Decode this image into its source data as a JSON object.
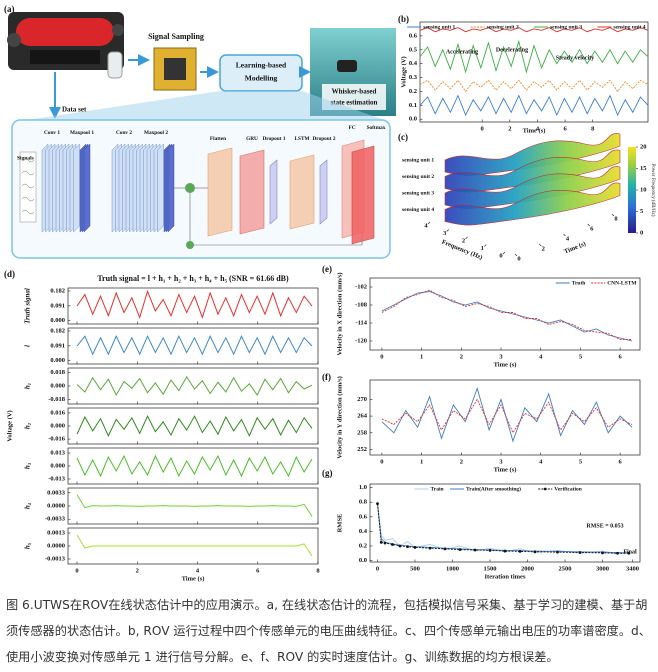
{
  "diagram": {
    "label": "(a)",
    "sampling": "Signal Sampling",
    "modelling": [
      "Learning-based",
      "Modelling"
    ],
    "estimation": [
      "Whisker-based",
      "state estimation"
    ],
    "dataset": "Data set",
    "signals": "Signals",
    "layers": [
      "Conv 1",
      "Maxpool 1",
      "Conv 2",
      "Maxpool 2",
      "Flatten",
      "GRU",
      "Dropout 1",
      "LSTM",
      "Dropout 2",
      "FC",
      "Softmax"
    ]
  },
  "chart_data": [
    {
      "type": "line",
      "label": "(b)",
      "xlabel": "Time (s)",
      "ylabel": "Voltage (V)",
      "legend": "top",
      "x": [
        -4.5,
        -3.95,
        -3.4,
        -2.85,
        -2.3,
        -1.75,
        -1.2,
        -0.65,
        -0.1,
        0.45,
        1,
        1.55,
        2.1,
        2.65,
        3.2,
        3.75,
        4.3,
        4.85,
        5.4,
        5.95,
        6.5,
        7.05,
        7.6,
        8.15,
        8.7,
        9.25,
        9.8,
        10.35,
        10.9,
        11.45,
        12
      ],
      "xlim": [
        -4.5,
        12
      ],
      "xticks": [
        0,
        2,
        4,
        6,
        8
      ],
      "ylim": [
        -0.02,
        0.7
      ],
      "yticks": [
        {
          "value": 0,
          "label": "0.0"
        },
        0.1,
        0.2,
        0.3,
        0.4,
        0.5,
        0.6
      ],
      "annotations": [
        "Accelerating",
        "Decelerating",
        "Steady velocity"
      ],
      "series": [
        {
          "name": "sensing unit 1",
          "color": "#3b7dd8",
          "values": [
            0.1,
            0.16,
            0.04,
            0.15,
            0.05,
            0.17,
            0.03,
            0.14,
            0.06,
            0.16,
            0.04,
            0.15,
            0.05,
            0.17,
            0.04,
            0.14,
            0.06,
            0.16,
            0.03,
            0.15,
            0.05,
            0.16,
            0.04,
            0.15,
            0.06,
            0.17,
            0.03,
            0.14,
            0.05,
            0.16,
            0.1
          ]
        },
        {
          "name": "sensing unit 2",
          "color": "#f08a2c",
          "dash": true,
          "values": [
            0.25,
            0.28,
            0.21,
            0.27,
            0.22,
            0.28,
            0.2,
            0.27,
            0.23,
            0.28,
            0.21,
            0.27,
            0.22,
            0.28,
            0.21,
            0.27,
            0.23,
            0.28,
            0.21,
            0.27,
            0.22,
            0.28,
            0.21,
            0.27,
            0.23,
            0.28,
            0.2,
            0.27,
            0.22,
            0.28,
            0.25
          ]
        },
        {
          "name": "sensing unit 3",
          "color": "#3cb043",
          "values": [
            0.45,
            0.52,
            0.38,
            0.5,
            0.36,
            0.54,
            0.34,
            0.53,
            0.37,
            0.55,
            0.35,
            0.52,
            0.38,
            0.56,
            0.34,
            0.53,
            0.37,
            0.5,
            0.4,
            0.49,
            0.41,
            0.5,
            0.4,
            0.49,
            0.41,
            0.5,
            0.4,
            0.49,
            0.41,
            0.5,
            0.45
          ]
        },
        {
          "name": "sensing unit 4",
          "color": "#e0312c",
          "values": [
            0.64,
            0.66,
            0.63,
            0.65,
            0.64,
            0.66,
            0.63,
            0.65,
            0.64,
            0.66,
            0.63,
            0.65,
            0.64,
            0.66,
            0.63,
            0.65,
            0.64,
            0.66,
            0.63,
            0.65,
            0.64,
            0.66,
            0.63,
            0.65,
            0.64,
            0.66,
            0.63,
            0.65,
            0.64,
            0.66,
            0.64
          ]
        }
      ]
    },
    {
      "type": "surface",
      "label": "(c)",
      "series_labels": [
        "sensing unit 1",
        "sensing unit 2",
        "sensing unit 3",
        "sensing unit 4"
      ],
      "xlabel": "Frequency (Hz)",
      "ylabel": "Time (s)",
      "colorbar_label": "Power Frequency (dB/Hz)",
      "xlim": [
        0,
        4
      ],
      "xticks": [
        0,
        1,
        2,
        3,
        4
      ],
      "ylim": [
        0,
        8
      ],
      "yticks": [
        0,
        2,
        4,
        6,
        8
      ],
      "clim": [
        0,
        20
      ],
      "cticks": [
        0,
        5,
        10,
        15,
        20
      ]
    },
    {
      "type": "stacked_line",
      "label": "(d)",
      "title": "Truth signal = l + h₁ + h₂ + h₃ + h₄ + h₅ (SNR = 61.66 dB)",
      "xlabel": "Time (s)",
      "ylabel": "Voltage (V)",
      "x": [
        0,
        0.26,
        0.52,
        0.78,
        1.04,
        1.3,
        1.56,
        1.82,
        2.08,
        2.34,
        2.6,
        2.86,
        3.12,
        3.38,
        3.64,
        3.9,
        4.16,
        4.42,
        4.68,
        4.94,
        5.2,
        5.46,
        5.72,
        5.98,
        6.24,
        6.5,
        6.76,
        7.02,
        7.28,
        7.54,
        7.8
      ],
      "xlim": [
        -0.3,
        8
      ],
      "xticks": [
        0,
        2,
        4,
        6,
        8
      ],
      "rows": [
        {
          "name": "Truth signal",
          "color": "#e8302a",
          "ylim": [
            -0.02,
            0.2
          ],
          "yticks": [
            0.182,
            0.091,
            {
              "value": 0,
              "label": "0.000"
            }
          ],
          "values": [
            0.09,
            0.16,
            0.04,
            0.15,
            0.03,
            0.17,
            0.05,
            0.14,
            0.02,
            0.18,
            0.06,
            0.13,
            0.03,
            0.16,
            0.05,
            0.15,
            0.02,
            0.17,
            0.04,
            0.14,
            0.03,
            0.16,
            0.05,
            0.15,
            0.04,
            0.17,
            0.03,
            0.14,
            0.05,
            0.15,
            0.09
          ]
        },
        {
          "name": "l",
          "color": "#3c86c8",
          "ylim": [
            -0.02,
            0.2
          ],
          "yticks": [
            0.182,
            0.091,
            {
              "value": 0,
              "label": "0.000"
            }
          ],
          "values": [
            0.09,
            0.15,
            0.04,
            0.14,
            0.04,
            0.15,
            0.05,
            0.14,
            0.04,
            0.15,
            0.05,
            0.14,
            0.04,
            0.15,
            0.05,
            0.14,
            0.04,
            0.15,
            0.05,
            0.14,
            0.04,
            0.15,
            0.05,
            0.14,
            0.04,
            0.15,
            0.05,
            0.14,
            0.05,
            0.14,
            0.09
          ]
        },
        {
          "name": "h₁",
          "color": "#5aa83a",
          "ylim": [
            -0.024,
            0.024
          ],
          "yticks": [
            0.018,
            {
              "value": 0,
              "label": "0.000"
            },
            -0.018
          ],
          "values": [
            0.002,
            -0.008,
            0.011,
            -0.005,
            0.009,
            -0.012,
            0.006,
            -0.003,
            0.01,
            -0.009,
            0.004,
            -0.011,
            0.008,
            -0.006,
            0.012,
            -0.004,
            0.007,
            -0.01,
            0.005,
            -0.008,
            0.011,
            -0.007,
            0.003,
            -0.012,
            0.009,
            -0.005,
            0.01,
            -0.009,
            0.006,
            -0.004,
            0.001
          ]
        },
        {
          "name": "h₂",
          "color": "#2e8b1e",
          "ylim": [
            -0.022,
            0.022
          ],
          "yticks": [
            0.016,
            {
              "value": 0,
              "label": "0.000"
            },
            -0.016
          ],
          "values": [
            -0.01,
            0.011,
            -0.006,
            0.009,
            -0.012,
            0.008,
            -0.004,
            0.01,
            -0.009,
            0.012,
            -0.007,
            0.005,
            -0.011,
            0.009,
            -0.005,
            0.012,
            -0.008,
            0.006,
            -0.01,
            0.011,
            -0.006,
            0.008,
            -0.012,
            0.01,
            -0.004,
            0.009,
            -0.011,
            0.007,
            -0.008,
            0.01,
            -0.003
          ]
        },
        {
          "name": "h₃",
          "color": "#4cbf2a",
          "ylim": [
            -0.018,
            0.018
          ],
          "yticks": [
            0.013,
            {
              "value": 0,
              "label": "0.000"
            },
            -0.013
          ],
          "values": [
            0.008,
            -0.009,
            0.006,
            -0.01,
            0.009,
            -0.005,
            0.01,
            -0.008,
            0.004,
            -0.009,
            0.01,
            -0.006,
            0.008,
            -0.01,
            0.005,
            -0.008,
            0.009,
            -0.004,
            0.01,
            -0.009,
            0.006,
            -0.01,
            0.008,
            -0.005,
            0.009,
            -0.008,
            0.004,
            -0.01,
            0.009,
            -0.006,
            0.007
          ]
        },
        {
          "name": "h₄",
          "color": "#72d02e",
          "ylim": [
            -0.0045,
            0.0045
          ],
          "yticks": [
            0.0033,
            {
              "value": 0,
              "label": "0.0000"
            },
            -0.0033
          ],
          "values": [
            0.0028,
            -0.0004,
            0.0001,
            0,
            0,
            0.0001,
            0,
            0,
            -0.0001,
            0,
            0,
            0.0001,
            0,
            0,
            0,
            -0.0001,
            0,
            0,
            0.0001,
            0,
            0,
            0,
            -0.0001,
            0,
            0,
            0.0001,
            0,
            0,
            -0.0001,
            0.0004,
            -0.0026
          ]
        },
        {
          "name": "h₅",
          "color": "#a6e22e",
          "ylim": [
            -0.0018,
            0.0018
          ],
          "yticks": [
            0.0013,
            {
              "value": 0,
              "label": "0.0000"
            },
            -0.0013
          ],
          "values": [
            0.0011,
            -0.0002,
            0,
            0,
            0,
            0,
            0,
            0,
            0,
            0,
            0,
            0,
            0,
            0,
            0,
            0,
            0,
            0,
            0,
            0,
            0,
            0,
            0,
            0,
            0,
            0,
            0,
            0,
            0,
            0.0002,
            -0.001
          ]
        }
      ]
    },
    {
      "type": "line",
      "label": "(e)",
      "xlabel": "Time (s)",
      "ylabel": "Velocity in X direction (mm/s)",
      "legend": "top-right",
      "x": [
        0,
        0.3,
        0.6,
        0.9,
        1.2,
        1.5,
        1.8,
        2.1,
        2.4,
        2.7,
        3,
        3.3,
        3.6,
        3.9,
        4.2,
        4.5,
        4.8,
        5.1,
        5.4,
        5.7,
        6,
        6.3
      ],
      "xlim": [
        -0.3,
        6.5
      ],
      "xticks": [
        0,
        1,
        2,
        3,
        4,
        5,
        6
      ],
      "ylim": [
        -123,
        -99
      ],
      "yticks": [
        -102,
        -108,
        -114,
        -120
      ],
      "series": [
        {
          "name": "Truth",
          "color": "#3d7ec2",
          "values": [
            -110,
            -108,
            -106,
            -104,
            -103.5,
            -105,
            -107,
            -108,
            -107,
            -109,
            -110,
            -111,
            -112,
            -113,
            -114,
            -113,
            -115,
            -117,
            -116,
            -118,
            -119,
            -120
          ]
        },
        {
          "name": "CNN-LSTM",
          "color": "#e0312c",
          "dash": true,
          "values": [
            -110.5,
            -108.5,
            -105.5,
            -104.5,
            -103,
            -105.5,
            -106.5,
            -108.5,
            -107.5,
            -108.5,
            -110.5,
            -110.5,
            -112.5,
            -112.5,
            -114.5,
            -113.5,
            -114.5,
            -116.5,
            -117,
            -117.5,
            -119.5,
            -119.5
          ]
        }
      ]
    },
    {
      "type": "line",
      "label": "(f)",
      "xlabel": "Time (s)",
      "ylabel": "Velocity in Y direction (mm/s)",
      "x": [
        0,
        0.3,
        0.6,
        0.9,
        1.2,
        1.5,
        1.8,
        2.1,
        2.4,
        2.7,
        3,
        3.3,
        3.6,
        3.9,
        4.2,
        4.5,
        4.8,
        5.1,
        5.4,
        5.7,
        6,
        6.3
      ],
      "xlim": [
        -0.3,
        6.5
      ],
      "xticks": [
        0,
        1,
        2,
        3,
        4,
        5,
        6
      ],
      "ylim": [
        250,
        277
      ],
      "yticks": [
        270,
        264,
        258,
        252
      ],
      "series": [
        {
          "color": "#3d7ec2",
          "values": [
            262,
            258,
            266,
            260,
            271,
            256,
            268,
            262,
            274,
            259,
            270,
            255,
            267,
            262,
            272,
            257,
            266,
            261,
            269,
            258,
            264,
            260
          ]
        },
        {
          "color": "#e0312c",
          "dash": true,
          "values": [
            263,
            261,
            265,
            262,
            268,
            259,
            266,
            263,
            270,
            261,
            268,
            258,
            265,
            263,
            269,
            259,
            265,
            262,
            267,
            260,
            263,
            261
          ]
        }
      ]
    },
    {
      "type": "line",
      "label": "(g)",
      "xlabel": "Iteration times",
      "ylabel": "RMSE",
      "legend": "top",
      "x": [
        0,
        50,
        100,
        200,
        300,
        400,
        500,
        700,
        900,
        1100,
        1300,
        1500,
        1700,
        1900,
        2100,
        2400,
        2700,
        3000,
        3200,
        3350
      ],
      "xlim": [
        -100,
        3500
      ],
      "xticks": [
        0,
        500,
        1000,
        1500,
        2000,
        2500,
        3000,
        3400
      ],
      "ylim": [
        -0.02,
        1.05
      ],
      "yticks": [
        {
          "value": 0,
          "label": "0.0"
        },
        0.2,
        0.4,
        0.6,
        0.8,
        {
          "value": 1,
          "label": "1.0"
        }
      ],
      "annotations": [
        "RMSE = 0.053",
        "Final"
      ],
      "series": [
        {
          "name": "Train",
          "color": "#a9cdef",
          "values": [
            0.8,
            0.35,
            0.28,
            0.3,
            0.2,
            0.26,
            0.18,
            0.22,
            0.15,
            0.2,
            0.13,
            0.17,
            0.12,
            0.16,
            0.11,
            0.14,
            0.1,
            0.13,
            0.09,
            0.12
          ]
        },
        {
          "name": "Train(After smoothing)",
          "color": "#3a7fc4",
          "values": [
            0.78,
            0.3,
            0.25,
            0.23,
            0.21,
            0.2,
            0.19,
            0.18,
            0.17,
            0.16,
            0.15,
            0.145,
            0.14,
            0.135,
            0.13,
            0.125,
            0.12,
            0.115,
            0.11,
            0.105
          ]
        },
        {
          "name": "Verification",
          "color": "#111111",
          "dash": true,
          "marker": true,
          "values": [
            0.78,
            0.25,
            0.24,
            0.22,
            0.2,
            0.19,
            0.18,
            0.17,
            0.16,
            0.15,
            0.145,
            0.14,
            0.13,
            0.125,
            0.12,
            0.115,
            0.11,
            0.105,
            0.1,
            0.1
          ]
        }
      ]
    }
  ],
  "caption": "图 6.UTWS在ROV在线状态估计中的应用演示。a, 在线状态估计的流程，包括模拟信号采集、基于学习的建模、基于胡须传感器的状态估计。b, ROV 运行过程中四个传感单元的电压曲线特征。c、四个传感单元输出电压的功率谱密度。d、使用小波变换对传感单元 1 进行信号分解。e、f、ROV 的实时速度估计。g、训练数据的均方根误差。"
}
